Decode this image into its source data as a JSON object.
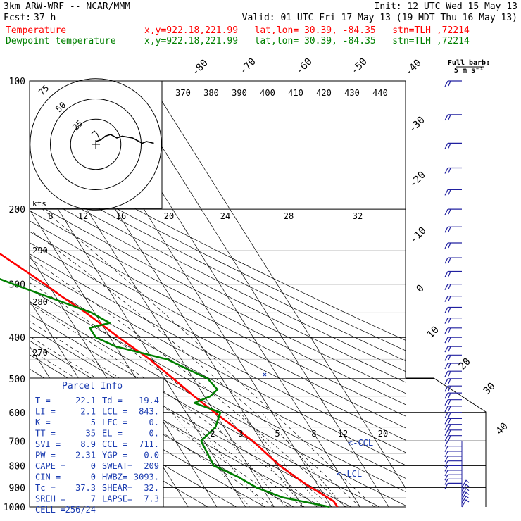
{
  "header": {
    "model": "3km ARW-WRF -- NCAR/MMM",
    "init": "Init: 12 UTC Wed 15 May 13",
    "fcst_label": "Fcst:",
    "fcst_hours": "37 h",
    "valid": "Valid: 01 UTC Fri 17 May 13 (19 MDT Thu 16 May 13)"
  },
  "legend": [
    {
      "label": "Temperature",
      "loc": "x,y=922.18,221.99   lat,lon= 30.39, -84.35   stn=TLH ,72214",
      "color": "#ff0000"
    },
    {
      "label": "Dewpoint temperature",
      "loc": "x,y=922.18,221.99   lat,lon= 30.39, -84.35   stn=TLH ,72214",
      "color": "#008000"
    }
  ],
  "barb_key": {
    "line1": "Full barb:",
    "line2": "5 m s⁻¹"
  },
  "hodograph": {
    "units": "kts",
    "ring_labels": [
      "25",
      "50",
      "75"
    ]
  },
  "parcel_info": {
    "title": "Parcel Info",
    "rows": [
      [
        "T  =",
        "22.1",
        "Td =",
        "19.4"
      ],
      [
        "LI =",
        "2.1",
        "LCL =",
        "843."
      ],
      [
        "K  =",
        "5",
        "LFC =",
        "0."
      ],
      [
        "TT =",
        "35",
        "EL  =",
        "0."
      ],
      [
        "SVI =",
        "8.9",
        "CCL =",
        "711."
      ],
      [
        "PW =",
        "2.31",
        "YGP =",
        "0.0"
      ],
      [
        "CAPE =",
        "0",
        "SWEAT=",
        "209"
      ],
      [
        "CIN =",
        "0",
        "HWBZ=",
        "3093."
      ],
      [
        "Tc =",
        "37.3",
        "SHEAR=",
        "32."
      ],
      [
        "SREH =",
        "7",
        "LAPSE=",
        "7.3"
      ],
      [
        "CELL =",
        "256/24",
        "",
        ""
      ]
    ]
  },
  "marker_labels": {
    "ccl": "<-CCL",
    "lcl": "<-LCL"
  },
  "colors": {
    "temperature": "#ff0000",
    "dewpoint": "#008000",
    "barbs": "#2020a0",
    "text": "#000000",
    "parcel": "#1a3bb0"
  },
  "chart_data": {
    "type": "line",
    "diagram": "skew-T log-P",
    "pressure_levels": [
      1000,
      900,
      800,
      700,
      600,
      500,
      400,
      300,
      200,
      100
    ],
    "isotherm_labels": [
      "-80",
      "-70",
      "-60",
      "-50",
      "-40",
      "-30",
      "-20",
      "-10",
      "0",
      "10",
      "20",
      "30",
      "40"
    ],
    "theta_labels": [
      "370",
      "380",
      "390",
      "400",
      "410",
      "420",
      "430",
      "440"
    ],
    "theta_e_labels": [
      "270",
      "280",
      "290"
    ],
    "mixing_ratio_top_labels": [
      "8",
      "12",
      "16",
      "20",
      "24",
      "28",
      "32"
    ],
    "mixing_ratio_low_labels": [
      "2",
      "3",
      "5",
      "8",
      "12",
      "20"
    ],
    "series": [
      {
        "name": "Temperature",
        "color": "#ff0000",
        "points": [
          [
            1000,
            22.1
          ],
          [
            970,
            22
          ],
          [
            925,
            19
          ],
          [
            900,
            17
          ],
          [
            850,
            14
          ],
          [
            800,
            11
          ],
          [
            700,
            7
          ],
          [
            600,
            0
          ],
          [
            550,
            -3.6
          ],
          [
            500,
            -7
          ],
          [
            450,
            -11
          ],
          [
            400,
            -17
          ],
          [
            350,
            -23
          ],
          [
            320,
            -28
          ],
          [
            300,
            -31
          ],
          [
            250,
            -41
          ],
          [
            200,
            -51
          ],
          [
            150,
            -60
          ],
          [
            120,
            -64
          ],
          [
            100,
            -65
          ]
        ]
      },
      {
        "name": "Dewpoint temperature",
        "color": "#008000",
        "points": [
          [
            1000,
            19.4
          ],
          [
            950,
            5
          ],
          [
            900,
            -2
          ],
          [
            850,
            -6
          ],
          [
            800,
            -12
          ],
          [
            700,
            -11
          ],
          [
            650,
            -3
          ],
          [
            600,
            2
          ],
          [
            570,
            -5
          ],
          [
            550,
            2
          ],
          [
            530,
            6
          ],
          [
            500,
            5
          ],
          [
            450,
            -5
          ],
          [
            420,
            -20
          ],
          [
            400,
            -25
          ],
          [
            380,
            -25
          ],
          [
            370,
            -17
          ],
          [
            350,
            -21
          ],
          [
            300,
            -42
          ],
          [
            280,
            -51
          ],
          [
            250,
            -56
          ],
          [
            200,
            -58
          ],
          [
            150,
            -64
          ],
          [
            120,
            -70
          ],
          [
            100,
            -72
          ]
        ]
      }
    ],
    "hodograph_trace": [
      [
        0,
        0
      ],
      [
        5,
        1
      ],
      [
        9,
        3
      ],
      [
        14,
        4
      ],
      [
        20,
        2
      ],
      [
        25,
        3
      ],
      [
        35,
        2
      ],
      [
        44,
        -1
      ],
      [
        48,
        0
      ],
      [
        55,
        -1
      ]
    ],
    "wind_barbs": {
      "units": "kts",
      "pressure_levels": [
        1000,
        980,
        960,
        940,
        920,
        900,
        880,
        860,
        840,
        820,
        800,
        780,
        760,
        740,
        720,
        700,
        680,
        660,
        640,
        620,
        600,
        580,
        560,
        540,
        520,
        500,
        480,
        460,
        440,
        420,
        400,
        380,
        360,
        340,
        320,
        300,
        280,
        260,
        240,
        220,
        200,
        180,
        160,
        140,
        120,
        100
      ]
    }
  }
}
